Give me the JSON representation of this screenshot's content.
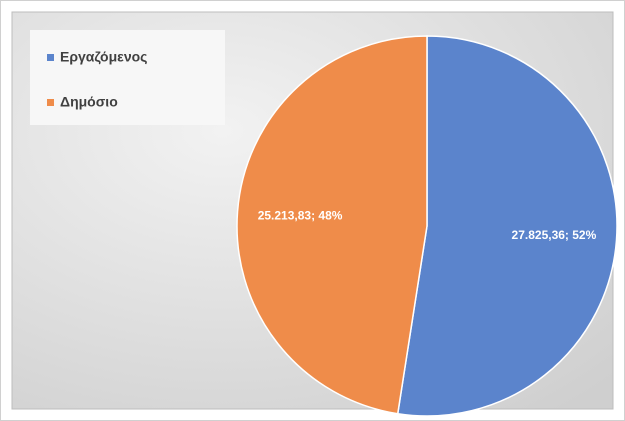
{
  "chart_data": {
    "type": "pie",
    "categories": [
      "Εργαζόμενος",
      "Δημόσιο"
    ],
    "values": [
      27825.36,
      25213.83
    ],
    "value_labels": [
      "27.825,36; 52%",
      "25.213,83; 48%"
    ],
    "colors": [
      "#5b84cc",
      "#ef8c4a"
    ],
    "legend": "top-left"
  }
}
